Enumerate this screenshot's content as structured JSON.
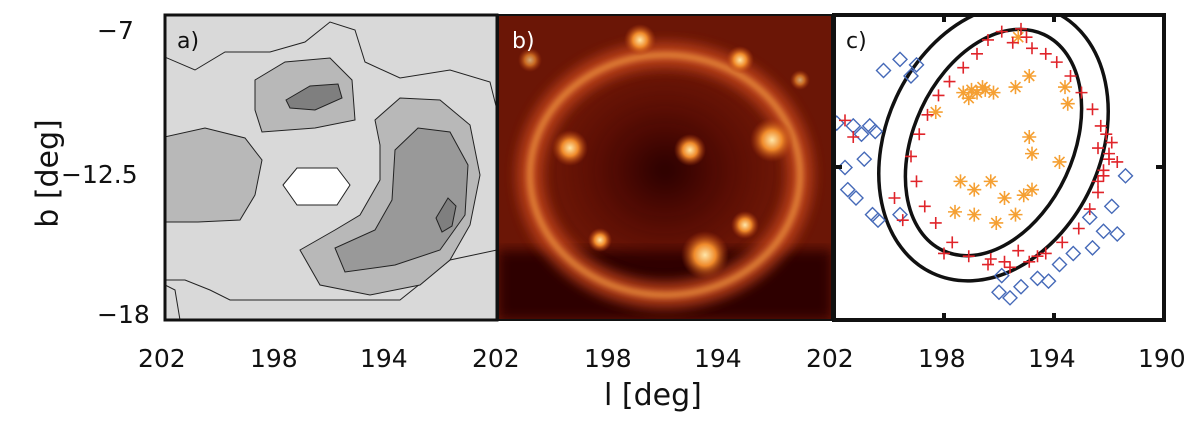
{
  "chart_data": [
    {
      "panel": "a)",
      "type": "contour",
      "x_ticks": [
        "202",
        "198",
        "194"
      ],
      "xlim": [
        202,
        190
      ],
      "ylim": [
        -18,
        -7
      ],
      "levels_fill": [
        "#ffffff",
        "#d9d9d9",
        "#b8b8b8",
        "#999999",
        "#7f7f7f"
      ]
    },
    {
      "panel": "b)",
      "type": "heatmap",
      "x_ticks": [
        "202",
        "198",
        "194"
      ],
      "xlim": [
        202,
        190
      ],
      "ylim": [
        -18,
        -7
      ],
      "colormap": [
        "#1a0200",
        "#5a0a02",
        "#a3290b",
        "#e0651b",
        "#ffd58a"
      ]
    },
    {
      "panel": "c)",
      "type": "scatter",
      "x_ticks": [
        "202",
        "198",
        "194",
        "190"
      ],
      "xlim": [
        202,
        190
      ],
      "ylim": [
        -18,
        -7
      ],
      "ellipses": [
        {
          "cx": 196.2,
          "cy": -11.6,
          "rx": 3.9,
          "ry": 5.2,
          "angle": 25
        },
        {
          "cx": 196.2,
          "cy": -11.6,
          "rx": 2.9,
          "ry": 4.3,
          "angle": 25
        }
      ],
      "series": [
        {
          "marker": "plus",
          "color": "#e0242a",
          "points": [
            [
              195.0,
              -7.8
            ],
            [
              195.5,
              -8.0
            ],
            [
              195.9,
              -7.6
            ],
            [
              196.4,
              -7.9
            ],
            [
              194.8,
              -8.2
            ],
            [
              196.8,
              -8.4
            ],
            [
              197.3,
              -8.9
            ],
            [
              197.8,
              -9.4
            ],
            [
              198.2,
              -9.9
            ],
            [
              198.6,
              -10.6
            ],
            [
              198.9,
              -11.3
            ],
            [
              199.2,
              -12.1
            ],
            [
              199.0,
              -13.0
            ],
            [
              198.7,
              -13.9
            ],
            [
              198.3,
              -14.5
            ],
            [
              197.7,
              -15.2
            ],
            [
              197.1,
              -15.7
            ],
            [
              196.4,
              -16.0
            ],
            [
              195.6,
              -16.1
            ],
            [
              194.9,
              -15.9
            ],
            [
              194.3,
              -15.6
            ],
            [
              193.7,
              -15.2
            ],
            [
              193.1,
              -14.7
            ],
            [
              192.7,
              -14.0
            ],
            [
              192.4,
              -13.4
            ],
            [
              192.2,
              -12.8
            ],
            [
              192.0,
              -12.2
            ],
            [
              191.9,
              -11.6
            ],
            [
              192.3,
              -11.0
            ],
            [
              192.6,
              -10.4
            ],
            [
              193.0,
              -9.8
            ],
            [
              193.4,
              -9.2
            ],
            [
              193.9,
              -8.7
            ],
            [
              194.3,
              -8.4
            ],
            [
              192.1,
              -11.3
            ],
            [
              192.0,
              -12.0
            ],
            [
              192.4,
              -11.8
            ],
            [
              192.2,
              -12.6
            ],
            [
              191.7,
              -12.3
            ],
            [
              195.3,
              -15.5
            ],
            [
              195.8,
              -15.9
            ],
            [
              196.3,
              -15.8
            ],
            [
              194.6,
              -15.7
            ],
            [
              201.6,
              -10.8
            ],
            [
              201.3,
              -11.4
            ],
            [
              199.8,
              -13.6
            ],
            [
              199.5,
              -14.4
            ],
            [
              198.0,
              -15.6
            ],
            [
              195.2,
              -7.5
            ],
            [
              192.4,
              -13.0
            ]
          ]
        },
        {
          "marker": "star",
          "color": "#f5a033",
          "points": [
            [
              197.3,
              -9.8
            ],
            [
              197.0,
              -9.7
            ],
            [
              196.8,
              -9.8
            ],
            [
              196.5,
              -9.7
            ],
            [
              196.2,
              -9.8
            ],
            [
              197.1,
              -10.0
            ],
            [
              196.6,
              -9.6
            ],
            [
              198.3,
              -10.5
            ],
            [
              195.4,
              -9.6
            ],
            [
              194.9,
              -9.2
            ],
            [
              193.6,
              -9.6
            ],
            [
              193.5,
              -10.2
            ],
            [
              194.9,
              -11.4
            ],
            [
              194.8,
              -12.0
            ],
            [
              197.4,
              -13.0
            ],
            [
              196.9,
              -13.3
            ],
            [
              196.3,
              -13.0
            ],
            [
              195.8,
              -13.6
            ],
            [
              195.1,
              -13.5
            ],
            [
              194.8,
              -13.3
            ],
            [
              195.4,
              -14.2
            ],
            [
              196.1,
              -14.5
            ],
            [
              197.6,
              -14.1
            ],
            [
              196.9,
              -14.2
            ],
            [
              193.8,
              -12.3
            ],
            [
              195.3,
              -7.8
            ]
          ]
        },
        {
          "marker": "diamond",
          "color": "#4569b8",
          "points": [
            [
              200.2,
              -9.0
            ],
            [
              199.6,
              -8.6
            ],
            [
              199.2,
              -9.2
            ],
            [
              199.0,
              -8.8
            ],
            [
              201.3,
              -11.0
            ],
            [
              201.0,
              -11.3
            ],
            [
              200.7,
              -11.0
            ],
            [
              200.5,
              -11.2
            ],
            [
              200.9,
              -12.2
            ],
            [
              201.5,
              -13.3
            ],
            [
              201.2,
              -13.6
            ],
            [
              200.6,
              -14.2
            ],
            [
              200.4,
              -14.4
            ],
            [
              196.0,
              -17.0
            ],
            [
              195.6,
              -17.2
            ],
            [
              195.2,
              -16.8
            ],
            [
              194.6,
              -16.5
            ],
            [
              193.8,
              -16.0
            ],
            [
              193.3,
              -15.6
            ],
            [
              192.6,
              -15.4
            ],
            [
              192.2,
              -14.8
            ],
            [
              191.7,
              -14.9
            ],
            [
              192.7,
              -14.3
            ],
            [
              191.4,
              -12.8
            ],
            [
              191.9,
              -13.9
            ],
            [
              194.2,
              -16.6
            ],
            [
              195.9,
              -16.4
            ],
            [
              201.9,
              -10.9
            ],
            [
              201.6,
              -12.5
            ],
            [
              199.6,
              -14.2
            ]
          ]
        }
      ]
    }
  ],
  "axes": {
    "ylabel": "b [deg]",
    "xlabel": "l [deg]",
    "y_ticks": [
      "−7",
      "−12.5",
      "−18"
    ]
  },
  "blobs_c": [
    [
      196.9,
      -9.8
    ],
    [
      193.6,
      -9.6
    ],
    [
      194.0,
      -12.0
    ],
    [
      196.6,
      -13.0
    ]
  ]
}
